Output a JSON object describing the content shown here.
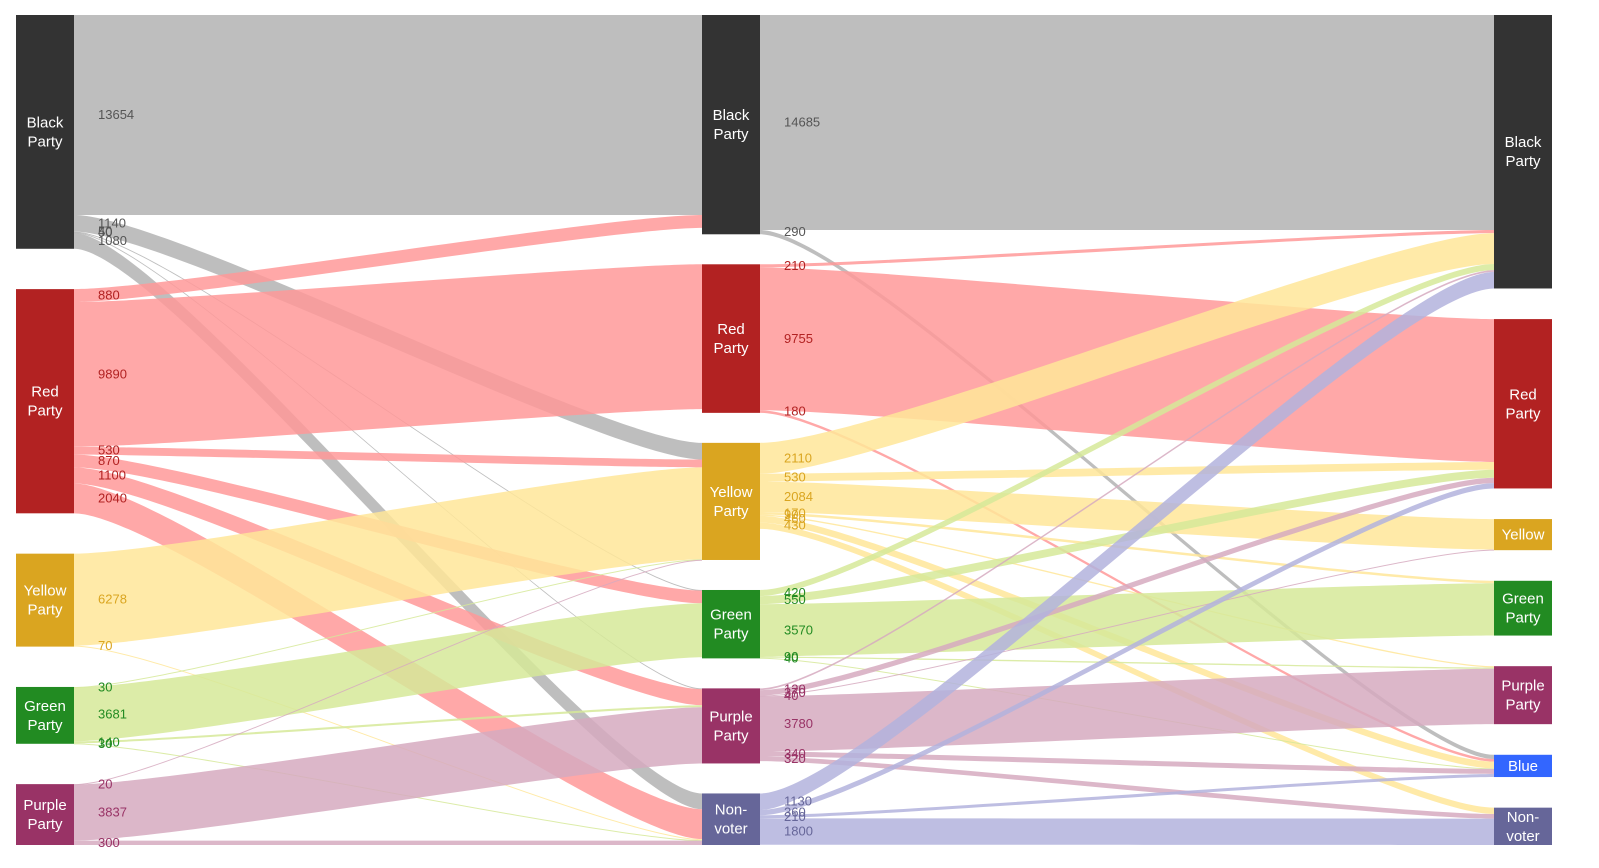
{
  "chart_data": {
    "type": "sankey",
    "columns": [
      {
        "nodes": [
          {
            "id": "c0-black",
            "lines": [
              "Black",
              "Party"
            ],
            "color": "#333333"
          },
          {
            "id": "c0-red",
            "lines": [
              "Red",
              "Party"
            ],
            "color": "#b22222"
          },
          {
            "id": "c0-yellow",
            "lines": [
              "Yellow",
              "Party"
            ],
            "color": "#daa520"
          },
          {
            "id": "c0-green",
            "lines": [
              "Green",
              "Party"
            ],
            "color": "#228b22"
          },
          {
            "id": "c0-purple",
            "lines": [
              "Purple",
              "Party"
            ],
            "color": "#993366"
          }
        ]
      },
      {
        "nodes": [
          {
            "id": "c1-black",
            "lines": [
              "Black",
              "Party"
            ],
            "color": "#333333"
          },
          {
            "id": "c1-red",
            "lines": [
              "Red",
              "Party"
            ],
            "color": "#b22222"
          },
          {
            "id": "c1-yellow",
            "lines": [
              "Yellow",
              "Party"
            ],
            "color": "#daa520"
          },
          {
            "id": "c1-green",
            "lines": [
              "Green",
              "Party"
            ],
            "color": "#228b22"
          },
          {
            "id": "c1-purple",
            "lines": [
              "Purple",
              "Party"
            ],
            "color": "#993366"
          },
          {
            "id": "c1-nonvoter",
            "lines": [
              "Non-",
              "voter"
            ],
            "color": "#666699"
          }
        ]
      },
      {
        "nodes": [
          {
            "id": "c2-black",
            "lines": [
              "Black",
              "Party"
            ],
            "color": "#333333"
          },
          {
            "id": "c2-red",
            "lines": [
              "Red",
              "Party"
            ],
            "color": "#b22222"
          },
          {
            "id": "c2-yellow",
            "lines": [
              "Yellow"
            ],
            "color": "#daa520"
          },
          {
            "id": "c2-green",
            "lines": [
              "Green",
              "Party"
            ],
            "color": "#228b22"
          },
          {
            "id": "c2-purple",
            "lines": [
              "Purple",
              "Party"
            ],
            "color": "#993366"
          },
          {
            "id": "c2-blue",
            "lines": [
              "Blue"
            ],
            "color": "#3366ff"
          },
          {
            "id": "c2-nonvoter",
            "lines": [
              "Non-",
              "voter"
            ],
            "color": "#666699"
          }
        ]
      }
    ],
    "link_colors": {
      "black": "#b3b3b3",
      "red": "#ff9999",
      "yellow": "#ffe699",
      "green": "#d6e999",
      "purple": "#d6aabf",
      "nonvoter": "#b3b3dd"
    },
    "label_colors": {
      "black": "#555555",
      "red": "#b22222",
      "yellow": "#daa520",
      "green": "#228b22",
      "purple": "#993366",
      "nonvoter": "#666699"
    },
    "links": [
      {
        "source": "c0-black",
        "target": "c1-black",
        "value": 13654,
        "label": "13654",
        "group": "black"
      },
      {
        "source": "c0-black",
        "target": "c1-yellow",
        "value": 1140,
        "label": "1140",
        "group": "black"
      },
      {
        "source": "c0-black",
        "target": "c1-nonvoter",
        "value": 1080,
        "label": "1080",
        "group": "black"
      },
      {
        "source": "c0-black",
        "target": "c1-green",
        "value": 40,
        "label": "40",
        "group": "black"
      },
      {
        "source": "c0-black",
        "target": "c1-purple",
        "value": 50,
        "label": "50",
        "group": "black"
      },
      {
        "source": "c0-red",
        "target": "c1-black",
        "value": 880,
        "label": "880",
        "group": "red"
      },
      {
        "source": "c0-red",
        "target": "c1-red",
        "value": 9890,
        "label": "9890",
        "group": "red"
      },
      {
        "source": "c0-red",
        "target": "c1-yellow",
        "value": 530,
        "label": "530",
        "group": "red"
      },
      {
        "source": "c0-red",
        "target": "c1-green",
        "value": 870,
        "label": "870",
        "group": "red"
      },
      {
        "source": "c0-red",
        "target": "c1-purple",
        "value": 1100,
        "label": "1100",
        "group": "red"
      },
      {
        "source": "c0-red",
        "target": "c1-nonvoter",
        "value": 2040,
        "label": "2040",
        "group": "red"
      },
      {
        "source": "c0-yellow",
        "target": "c1-yellow",
        "value": 6278,
        "label": "6278",
        "group": "yellow"
      },
      {
        "source": "c0-yellow",
        "target": "c1-nonvoter",
        "value": 70,
        "label": "70",
        "group": "yellow"
      },
      {
        "source": "c0-green",
        "target": "c1-green",
        "value": 3681,
        "label": "3681",
        "group": "green"
      },
      {
        "source": "c0-green",
        "target": "c1-yellow",
        "value": 30,
        "label": "30",
        "group": "green"
      },
      {
        "source": "c0-green",
        "target": "c1-purple",
        "value": 140,
        "label": "140",
        "group": "green"
      },
      {
        "source": "c0-green",
        "target": "c1-nonvoter",
        "value": 30,
        "label": "30",
        "group": "green"
      },
      {
        "source": "c0-purple",
        "target": "c1-purple",
        "value": 3837,
        "label": "3837",
        "group": "purple"
      },
      {
        "source": "c0-purple",
        "target": "c1-yellow",
        "value": 20,
        "label": "20",
        "group": "purple"
      },
      {
        "source": "c0-purple",
        "target": "c1-nonvoter",
        "value": 300,
        "label": "300",
        "group": "purple"
      },
      {
        "source": "c1-black",
        "target": "c2-black",
        "value": 14685,
        "label": "14685",
        "group": "black"
      },
      {
        "source": "c1-black",
        "target": "c2-blue",
        "value": 290,
        "label": "290",
        "group": "black"
      },
      {
        "source": "c1-red",
        "target": "c2-black",
        "value": 210,
        "label": "210",
        "group": "red"
      },
      {
        "source": "c1-red",
        "target": "c2-red",
        "value": 9755,
        "label": "9755",
        "group": "red"
      },
      {
        "source": "c1-red",
        "target": "c2-blue",
        "value": 180,
        "label": "180",
        "group": "red"
      },
      {
        "source": "c1-yellow",
        "target": "c2-black",
        "value": 2110,
        "label": "2110",
        "group": "yellow"
      },
      {
        "source": "c1-yellow",
        "target": "c2-red",
        "value": 530,
        "label": "530",
        "group": "yellow"
      },
      {
        "source": "c1-yellow",
        "target": "c2-yellow",
        "value": 2084,
        "label": "2084",
        "group": "yellow"
      },
      {
        "source": "c1-yellow",
        "target": "c2-green",
        "value": 170,
        "label": "170",
        "group": "yellow"
      },
      {
        "source": "c1-yellow",
        "target": "c2-purple",
        "value": 90,
        "label": "90",
        "group": "yellow"
      },
      {
        "source": "c1-yellow",
        "target": "c2-blue",
        "value": 460,
        "label": "460",
        "group": "yellow"
      },
      {
        "source": "c1-yellow",
        "target": "c2-nonvoter",
        "value": 430,
        "label": "430",
        "group": "yellow"
      },
      {
        "source": "c1-green",
        "target": "c2-black",
        "value": 420,
        "label": "420",
        "group": "green"
      },
      {
        "source": "c1-green",
        "target": "c2-red",
        "value": 550,
        "label": "550",
        "group": "green"
      },
      {
        "source": "c1-green",
        "target": "c2-green",
        "value": 3570,
        "label": "3570",
        "group": "green"
      },
      {
        "source": "c1-green",
        "target": "c2-purple",
        "value": 90,
        "label": "90",
        "group": "green"
      },
      {
        "source": "c1-green",
        "target": "c2-blue",
        "value": 40,
        "label": "40",
        "group": "green"
      },
      {
        "source": "c1-purple",
        "target": "c2-black",
        "value": 120,
        "label": "120",
        "group": "purple"
      },
      {
        "source": "c1-purple",
        "target": "c2-red",
        "value": 370,
        "label": "370",
        "group": "purple"
      },
      {
        "source": "c1-purple",
        "target": "c2-purple",
        "value": 3780,
        "label": "3780",
        "group": "purple"
      },
      {
        "source": "c1-purple",
        "target": "c2-yellow",
        "value": 40,
        "label": "40",
        "group": "purple"
      },
      {
        "source": "c1-purple",
        "target": "c2-blue",
        "value": 340,
        "label": "340",
        "group": "purple"
      },
      {
        "source": "c1-purple",
        "target": "c2-nonvoter",
        "value": 320,
        "label": "320",
        "group": "purple"
      },
      {
        "source": "c1-nonvoter",
        "target": "c2-black",
        "value": 1130,
        "label": "1130",
        "group": "nonvoter"
      },
      {
        "source": "c1-nonvoter",
        "target": "c2-red",
        "value": 360,
        "label": "360",
        "group": "nonvoter"
      },
      {
        "source": "c1-nonvoter",
        "target": "c2-blue",
        "value": 210,
        "label": "210",
        "group": "nonvoter"
      },
      {
        "source": "c1-nonvoter",
        "target": "c2-nonvoter",
        "value": 1800,
        "label": "1800",
        "group": "nonvoter"
      }
    ]
  }
}
